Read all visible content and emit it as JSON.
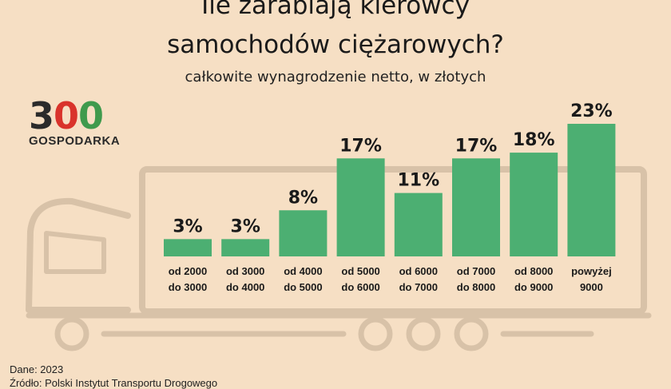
{
  "header": {
    "title_line1": "Ile zarabiają kierowcy",
    "title_line2": "samochodów ciężarowych?",
    "subtitle": "całkowite wynagrodzenie netto, w złotych"
  },
  "logo": {
    "digit_3": "3",
    "digit_0a": "0",
    "digit_0b": "0",
    "text": "GOSPODARKA"
  },
  "footer": {
    "data_line": "Dane: 2023",
    "source_line": "Źródło: Polski Instytut Transportu Drogowego"
  },
  "colors": {
    "background": "#f6dfc4",
    "bar": "#4caf72",
    "truck_outline": "#d8c2a8"
  },
  "chart_data": {
    "type": "bar",
    "title": "Ile zarabiają kierowcy samochodów ciężarowych?",
    "subtitle": "całkowite wynagrodzenie netto, w złotych",
    "categories": [
      [
        "od 2000",
        "do 3000"
      ],
      [
        "od 3000",
        "do 4000"
      ],
      [
        "od 4000",
        "do 5000"
      ],
      [
        "od 5000",
        "do 6000"
      ],
      [
        "od 6000",
        "do 7000"
      ],
      [
        "od 7000",
        "do 8000"
      ],
      [
        "od 8000",
        "do 9000"
      ],
      [
        "powyżej",
        "9000"
      ]
    ],
    "values": [
      3,
      3,
      8,
      17,
      11,
      17,
      18,
      23
    ],
    "value_labels": [
      "3%",
      "3%",
      "8%",
      "17%",
      "11%",
      "17%",
      "18%",
      "23%"
    ],
    "unit": "%",
    "ylim": [
      0,
      23
    ]
  }
}
